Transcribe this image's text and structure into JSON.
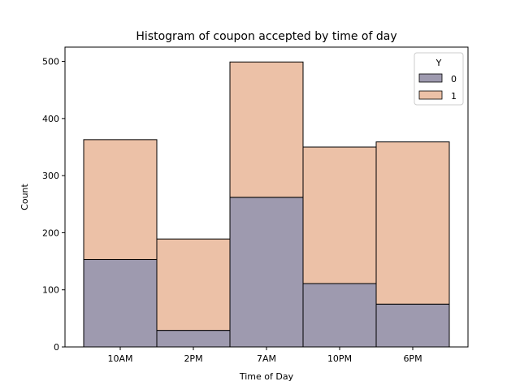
{
  "chart_data": {
    "type": "bar",
    "stacked": true,
    "title": "Histogram of coupon accepted by time of day",
    "xlabel": "Time of Day",
    "ylabel": "Count",
    "categories": [
      "10AM",
      "2PM",
      "7AM",
      "10PM",
      "6PM"
    ],
    "series": [
      {
        "name": "0",
        "values": [
          153,
          29,
          262,
          111,
          75
        ],
        "color": "#9e9aaf"
      },
      {
        "name": "1",
        "values": [
          210,
          160,
          237,
          239,
          284
        ],
        "color": "#ecc1a7"
      }
    ],
    "ylim": [
      0,
      525
    ],
    "yticks": [
      0,
      100,
      200,
      300,
      400,
      500
    ],
    "legend": {
      "title": "Y",
      "position": "top-right"
    },
    "grid": false
  }
}
